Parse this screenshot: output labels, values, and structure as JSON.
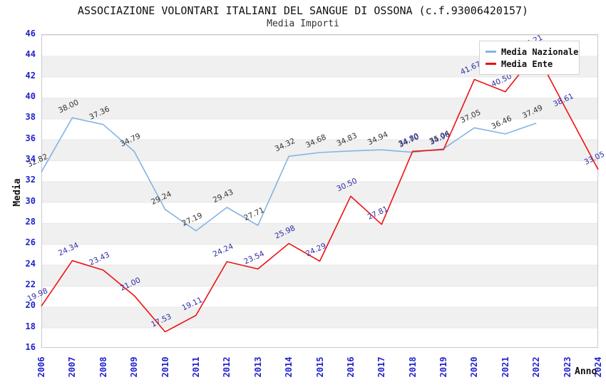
{
  "header": {
    "title": "ASSOCIAZIONE VOLONTARI ITALIANI DEL SANGUE DI OSSONA (c.f.93006420157)",
    "subtitle": "Media Importi"
  },
  "legend": {
    "items": [
      {
        "label": "Media Nazionale",
        "color": "#85b3e3"
      },
      {
        "label": "Media Ente",
        "color": "#ee1111"
      }
    ]
  },
  "axes": {
    "y_title": "Media",
    "x_title": "Anno",
    "y_ticks": [
      46,
      44,
      42,
      40,
      38,
      36,
      34,
      32,
      30,
      28,
      26,
      24,
      22,
      20,
      18,
      16
    ],
    "x_ticks": [
      "2006",
      "2007",
      "2008",
      "2009",
      "2010",
      "2011",
      "2012",
      "2013",
      "2014",
      "2015",
      "2016",
      "2017",
      "2018",
      "2019",
      "2020",
      "2021",
      "2022",
      "2023",
      "2024"
    ]
  },
  "colors": {
    "axis_tick_text": "#2222cc",
    "band_gray": "#f0f0f0",
    "plot_border": "#c9c9c9",
    "media_nazionale_line": "#85b3e3",
    "media_ente_line": "#ee1111",
    "media_nazionale_label_text": "#333333",
    "media_ente_label_text": "#2d2da6"
  },
  "chart_data": {
    "type": "line",
    "title": "ASSOCIAZIONE VOLONTARI ITALIANI DEL SANGUE DI OSSONA (c.f.93006420157)",
    "subtitle": "Media Importi",
    "xlabel": "Anno",
    "ylabel": "Media",
    "ylim": [
      16,
      46
    ],
    "ytick_step": 2,
    "grid": "horizontal-alternating-bands",
    "legend_position": "top-right-overlapping-plot",
    "categories": [
      "2006",
      "2007",
      "2008",
      "2009",
      "2010",
      "2011",
      "2012",
      "2013",
      "2014",
      "2015",
      "2016",
      "2017",
      "2018",
      "2019",
      "2020",
      "2021",
      "2022",
      "2023",
      "2024"
    ],
    "series": [
      {
        "name": "Media Nazionale",
        "color": "#85b3e3",
        "label_color": "#333333",
        "values": [
          32.82,
          38.0,
          37.36,
          34.79,
          29.24,
          27.19,
          29.43,
          27.71,
          34.32,
          34.68,
          34.83,
          34.94,
          34.7,
          35.04,
          37.05,
          36.46,
          37.49,
          null,
          null
        ],
        "labels": [
          "32.82",
          "38.00",
          "37.36",
          "34.79",
          "29.24",
          "27.19",
          "29.43",
          "27.71",
          "34.32",
          "34.68",
          "34.83",
          "34.94",
          "34.70",
          "35.04",
          "37.05",
          "36.46",
          "37.49",
          null,
          null
        ]
      },
      {
        "name": "Media Ente",
        "color": "#ee1111",
        "label_color": "#2d2da6",
        "values": [
          19.98,
          24.34,
          23.43,
          21.0,
          17.53,
          19.11,
          24.24,
          23.54,
          25.98,
          24.29,
          30.5,
          27.81,
          34.8,
          34.96,
          41.67,
          40.5,
          44.21,
          38.61,
          33.05
        ],
        "labels": [
          "19.98",
          "24.34",
          "23.43",
          "21.00",
          "17.53",
          "19.11",
          "24.24",
          "23.54",
          "25.98",
          "24.29",
          "30.50",
          "27.81",
          "34.80",
          "34.96",
          "41.67",
          "40.50",
          "44.21",
          "38.61",
          "33.05"
        ]
      }
    ]
  }
}
